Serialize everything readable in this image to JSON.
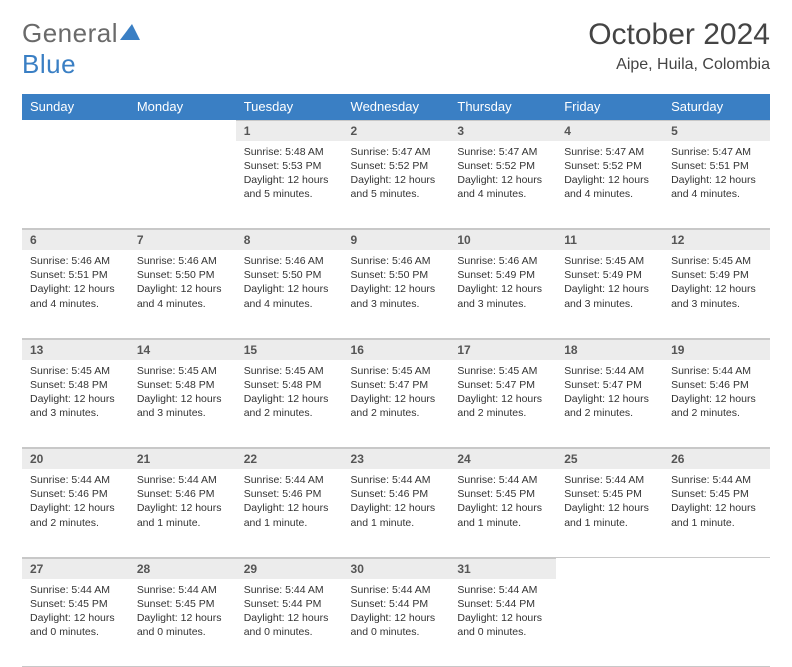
{
  "brand": {
    "name_gray": "General",
    "name_blue": "Blue"
  },
  "title": "October 2024",
  "location": "Aipe, Huila, Colombia",
  "colors": {
    "header_bg": "#3a7fc4",
    "header_text": "#ffffff",
    "daynum_bg": "#ececec",
    "border": "#c8c8c8",
    "body_text": "#333333",
    "title_text": "#444444",
    "logo_gray": "#6a6a6a",
    "logo_blue": "#3a7fc4",
    "page_bg": "#ffffff"
  },
  "weekdays": [
    "Sunday",
    "Monday",
    "Tuesday",
    "Wednesday",
    "Thursday",
    "Friday",
    "Saturday"
  ],
  "weeks": [
    [
      null,
      null,
      {
        "n": "1",
        "sr": "5:48 AM",
        "ss": "5:53 PM",
        "dl": "12 hours and 5 minutes."
      },
      {
        "n": "2",
        "sr": "5:47 AM",
        "ss": "5:52 PM",
        "dl": "12 hours and 5 minutes."
      },
      {
        "n": "3",
        "sr": "5:47 AM",
        "ss": "5:52 PM",
        "dl": "12 hours and 4 minutes."
      },
      {
        "n": "4",
        "sr": "5:47 AM",
        "ss": "5:52 PM",
        "dl": "12 hours and 4 minutes."
      },
      {
        "n": "5",
        "sr": "5:47 AM",
        "ss": "5:51 PM",
        "dl": "12 hours and 4 minutes."
      }
    ],
    [
      {
        "n": "6",
        "sr": "5:46 AM",
        "ss": "5:51 PM",
        "dl": "12 hours and 4 minutes."
      },
      {
        "n": "7",
        "sr": "5:46 AM",
        "ss": "5:50 PM",
        "dl": "12 hours and 4 minutes."
      },
      {
        "n": "8",
        "sr": "5:46 AM",
        "ss": "5:50 PM",
        "dl": "12 hours and 4 minutes."
      },
      {
        "n": "9",
        "sr": "5:46 AM",
        "ss": "5:50 PM",
        "dl": "12 hours and 3 minutes."
      },
      {
        "n": "10",
        "sr": "5:46 AM",
        "ss": "5:49 PM",
        "dl": "12 hours and 3 minutes."
      },
      {
        "n": "11",
        "sr": "5:45 AM",
        "ss": "5:49 PM",
        "dl": "12 hours and 3 minutes."
      },
      {
        "n": "12",
        "sr": "5:45 AM",
        "ss": "5:49 PM",
        "dl": "12 hours and 3 minutes."
      }
    ],
    [
      {
        "n": "13",
        "sr": "5:45 AM",
        "ss": "5:48 PM",
        "dl": "12 hours and 3 minutes."
      },
      {
        "n": "14",
        "sr": "5:45 AM",
        "ss": "5:48 PM",
        "dl": "12 hours and 3 minutes."
      },
      {
        "n": "15",
        "sr": "5:45 AM",
        "ss": "5:48 PM",
        "dl": "12 hours and 2 minutes."
      },
      {
        "n": "16",
        "sr": "5:45 AM",
        "ss": "5:47 PM",
        "dl": "12 hours and 2 minutes."
      },
      {
        "n": "17",
        "sr": "5:45 AM",
        "ss": "5:47 PM",
        "dl": "12 hours and 2 minutes."
      },
      {
        "n": "18",
        "sr": "5:44 AM",
        "ss": "5:47 PM",
        "dl": "12 hours and 2 minutes."
      },
      {
        "n": "19",
        "sr": "5:44 AM",
        "ss": "5:46 PM",
        "dl": "12 hours and 2 minutes."
      }
    ],
    [
      {
        "n": "20",
        "sr": "5:44 AM",
        "ss": "5:46 PM",
        "dl": "12 hours and 2 minutes."
      },
      {
        "n": "21",
        "sr": "5:44 AM",
        "ss": "5:46 PM",
        "dl": "12 hours and 1 minute."
      },
      {
        "n": "22",
        "sr": "5:44 AM",
        "ss": "5:46 PM",
        "dl": "12 hours and 1 minute."
      },
      {
        "n": "23",
        "sr": "5:44 AM",
        "ss": "5:46 PM",
        "dl": "12 hours and 1 minute."
      },
      {
        "n": "24",
        "sr": "5:44 AM",
        "ss": "5:45 PM",
        "dl": "12 hours and 1 minute."
      },
      {
        "n": "25",
        "sr": "5:44 AM",
        "ss": "5:45 PM",
        "dl": "12 hours and 1 minute."
      },
      {
        "n": "26",
        "sr": "5:44 AM",
        "ss": "5:45 PM",
        "dl": "12 hours and 1 minute."
      }
    ],
    [
      {
        "n": "27",
        "sr": "5:44 AM",
        "ss": "5:45 PM",
        "dl": "12 hours and 0 minutes."
      },
      {
        "n": "28",
        "sr": "5:44 AM",
        "ss": "5:45 PM",
        "dl": "12 hours and 0 minutes."
      },
      {
        "n": "29",
        "sr": "5:44 AM",
        "ss": "5:44 PM",
        "dl": "12 hours and 0 minutes."
      },
      {
        "n": "30",
        "sr": "5:44 AM",
        "ss": "5:44 PM",
        "dl": "12 hours and 0 minutes."
      },
      {
        "n": "31",
        "sr": "5:44 AM",
        "ss": "5:44 PM",
        "dl": "12 hours and 0 minutes."
      },
      null,
      null
    ]
  ],
  "labels": {
    "sunrise": "Sunrise:",
    "sunset": "Sunset:",
    "daylight": "Daylight:"
  }
}
